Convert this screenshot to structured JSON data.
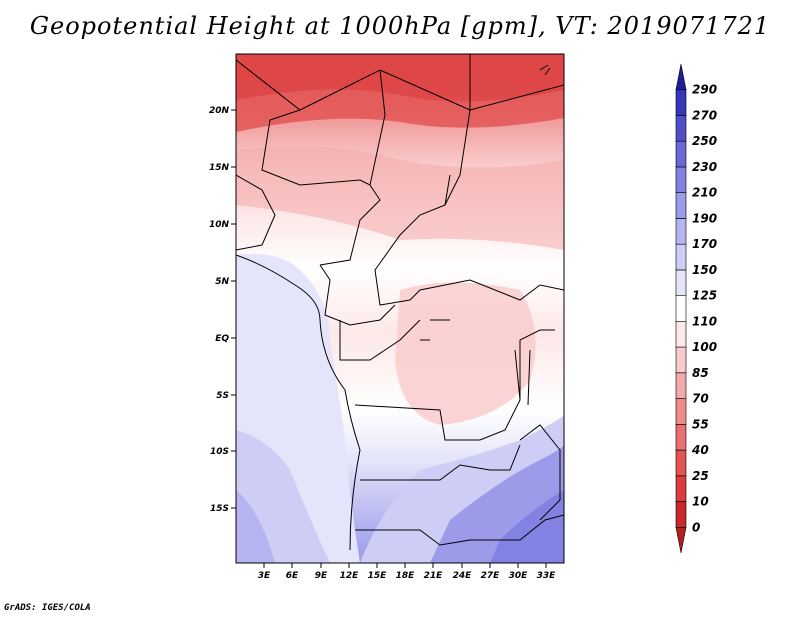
{
  "title": "Geopotential Height at 1000hPa [gpm], VT: 2019071721",
  "credit": "GrADS: IGES/COLA",
  "map": {
    "lat_labels": [
      "20N",
      "15N",
      "10N",
      "5N",
      "EQ",
      "5S",
      "10S",
      "15S"
    ],
    "lon_labels": [
      "3E",
      "6E",
      "9E",
      "12E",
      "15E",
      "18E",
      "21E",
      "24E",
      "27E",
      "30E",
      "33E"
    ]
  },
  "colorbar": {
    "levels": [
      "0",
      "10",
      "25",
      "40",
      "55",
      "70",
      "85",
      "100",
      "110",
      "125",
      "150",
      "170",
      "190",
      "210",
      "230",
      "250",
      "270",
      "290"
    ],
    "colors": [
      "#b41e1e",
      "#c82828",
      "#dc3c3c",
      "#e35555",
      "#e87070",
      "#ee8c8c",
      "#f4aaaa",
      "#f9cccc",
      "#fde8e8",
      "#ffffff",
      "#e4e4fa",
      "#cdcdf6",
      "#b4b4f0",
      "#9b9bea",
      "#8282e2",
      "#6868d6",
      "#4f4fc8",
      "#3636b8",
      "#1e1e9e"
    ]
  }
}
